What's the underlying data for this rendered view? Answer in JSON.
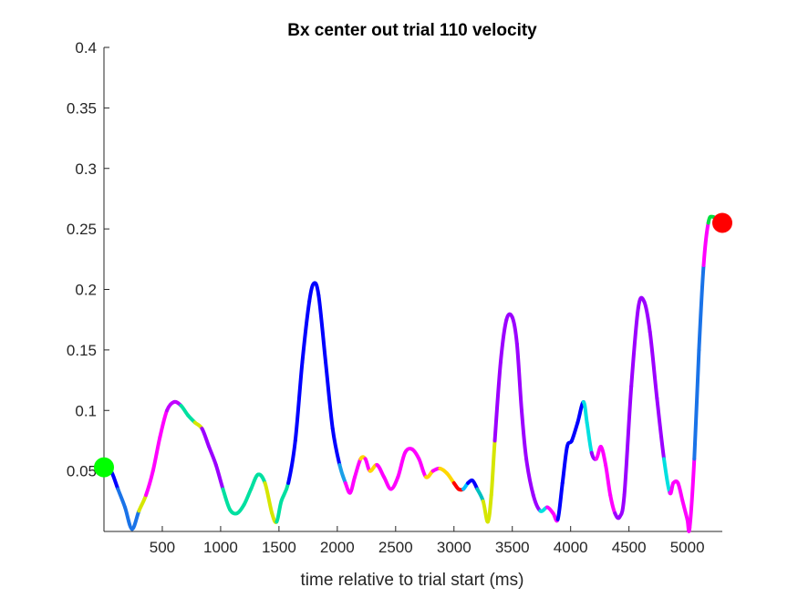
{
  "chart_data": {
    "type": "line",
    "title": "Bx  center out trial 110 velocity",
    "xlabel": "time relative to trial start (ms)",
    "ylabel": "",
    "xlim": [
      0,
      5300
    ],
    "ylim": [
      0,
      0.4
    ],
    "x_ticks": [
      500,
      1000,
      1500,
      2000,
      2500,
      3000,
      3500,
      4000,
      4500,
      5000
    ],
    "x_tick_labels": [
      "500",
      "1000",
      "1500",
      "2000",
      "2500",
      "3000",
      "3500",
      "4000",
      "4500",
      "5000"
    ],
    "y_ticks": [
      0.05,
      0.1,
      0.15,
      0.2,
      0.25,
      0.3,
      0.35,
      0.4
    ],
    "y_tick_labels": [
      "0.05",
      "0.1",
      "0.15",
      "0.2",
      "0.25",
      "0.3",
      "0.35",
      "0.4"
    ],
    "grid": false,
    "series": [
      {
        "x": [
          0,
          60,
          120,
          180,
          240,
          300,
          360,
          420,
          480,
          540,
          600,
          660,
          720,
          780,
          840,
          900,
          960,
          1020,
          1080,
          1140,
          1200,
          1260,
          1320,
          1380,
          1440,
          1480,
          1520,
          1580,
          1640,
          1700,
          1760,
          1800,
          1840,
          1900,
          1960,
          2020,
          2070,
          2110,
          2150,
          2200,
          2240,
          2280,
          2340,
          2400,
          2460,
          2520,
          2580,
          2640,
          2700,
          2760,
          2820,
          2880,
          2940,
          3000,
          3040,
          3080,
          3120,
          3160,
          3200,
          3250,
          3290,
          3320,
          3350,
          3400,
          3450,
          3500,
          3540,
          3580,
          3620,
          3680,
          3740,
          3800,
          3850,
          3890,
          3930,
          3970,
          4010,
          4060,
          4110,
          4140,
          4180,
          4220,
          4260,
          4300,
          4340,
          4380,
          4420,
          4460,
          4520,
          4580,
          4630,
          4680,
          4740,
          4800,
          4850,
          4880,
          4920,
          4960,
          5000,
          5020,
          5060,
          5100,
          5140,
          5180,
          5220,
          5300
        ],
        "y": [
          0.053,
          0.05,
          0.035,
          0.02,
          0.002,
          0.017,
          0.03,
          0.05,
          0.078,
          0.1,
          0.107,
          0.104,
          0.096,
          0.09,
          0.085,
          0.07,
          0.055,
          0.035,
          0.018,
          0.015,
          0.022,
          0.035,
          0.047,
          0.04,
          0.015,
          0.008,
          0.025,
          0.04,
          0.075,
          0.14,
          0.19,
          0.205,
          0.195,
          0.14,
          0.085,
          0.055,
          0.04,
          0.032,
          0.045,
          0.06,
          0.06,
          0.05,
          0.055,
          0.045,
          0.035,
          0.045,
          0.065,
          0.068,
          0.06,
          0.045,
          0.05,
          0.052,
          0.048,
          0.04,
          0.035,
          0.035,
          0.04,
          0.042,
          0.035,
          0.025,
          0.008,
          0.03,
          0.075,
          0.14,
          0.175,
          0.177,
          0.155,
          0.1,
          0.06,
          0.03,
          0.017,
          0.02,
          0.015,
          0.01,
          0.04,
          0.07,
          0.075,
          0.09,
          0.107,
          0.09,
          0.065,
          0.06,
          0.07,
          0.055,
          0.03,
          0.015,
          0.012,
          0.03,
          0.12,
          0.185,
          0.19,
          0.165,
          0.11,
          0.06,
          0.032,
          0.04,
          0.04,
          0.025,
          0.01,
          0.003,
          0.06,
          0.15,
          0.22,
          0.255,
          0.26,
          0.255
        ],
        "colors": [
          "#0000ff",
          "#0000ff",
          "#1a73e8",
          "#1a73e8",
          "#1a73e8",
          "#d6e600",
          "#ff00ff",
          "#ff00ff",
          "#ff00ff",
          "#c000ff",
          "#c000ff",
          "#00e0a0",
          "#00e0a0",
          "#d6e600",
          "#9b00ff",
          "#9b00ff",
          "#9b00ff",
          "#00e0a0",
          "#00e0a0",
          "#00e0a0",
          "#00e0a0",
          "#00e0a0",
          "#00e0a0",
          "#d6e600",
          "#d6e600",
          "#00e0a0",
          "#00e0a0",
          "#0000ff",
          "#0000ff",
          "#0000ff",
          "#0000ff",
          "#0000ff",
          "#0000ff",
          "#0000ff",
          "#0000ff",
          "#1aa0e8",
          "#ff00ff",
          "#ff00ff",
          "#ff00ff",
          "#ffd700",
          "#ff00ff",
          "#ffd700",
          "#ff00ff",
          "#ff00ff",
          "#ff00ff",
          "#ff00ff",
          "#ff00ff",
          "#ff00ff",
          "#ff00ff",
          "#ffd700",
          "#ff00ff",
          "#ffd700",
          "#ffd700",
          "#ff0000",
          "#ff0000",
          "#00c0ff",
          "#0000ff",
          "#0000ff",
          "#00c0c0",
          "#d6e600",
          "#d6e600",
          "#d6e600",
          "#9b00ff",
          "#9b00ff",
          "#9b00ff",
          "#9b00ff",
          "#9b00ff",
          "#9b00ff",
          "#9b00ff",
          "#9b00ff",
          "#00e0e0",
          "#ff00ff",
          "#ff00ff",
          "#0000ff",
          "#0000ff",
          "#0000ff",
          "#0000ff",
          "#0000ff",
          "#00e0e0",
          "#00e0e0",
          "#9b00ff",
          "#ff00ff",
          "#ff00ff",
          "#ff00ff",
          "#ff00ff",
          "#9b00ff",
          "#9b00ff",
          "#9b00ff",
          "#9b00ff",
          "#9b00ff",
          "#9b00ff",
          "#9b00ff",
          "#9b00ff",
          "#00e0e0",
          "#ff00ff",
          "#ff00ff",
          "#ff00ff",
          "#ff00ff",
          "#ff00ff",
          "#ff00ff",
          "#1a73e8",
          "#1a73e8",
          "#ff00ff",
          "#00e040",
          "#00e040"
        ]
      }
    ],
    "start_marker": {
      "x": 0,
      "y": 0.053,
      "color": "#00ff00"
    },
    "end_marker": {
      "x": 5300,
      "y": 0.255,
      "color": "#ff0000"
    }
  }
}
